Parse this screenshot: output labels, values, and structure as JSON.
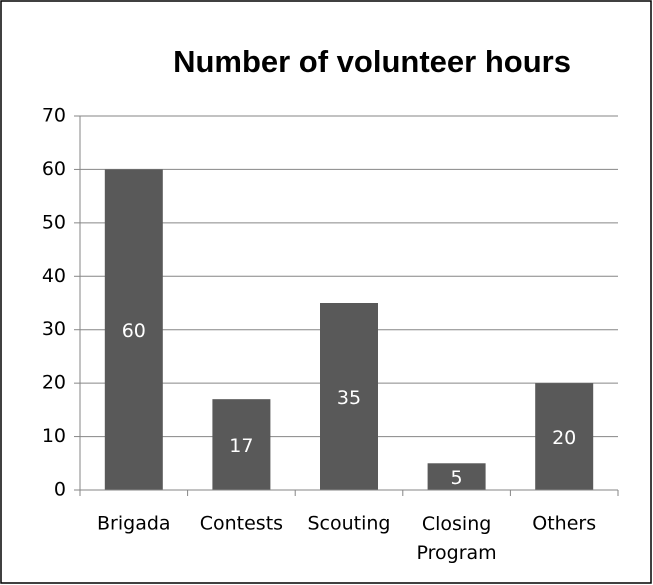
{
  "chart_data": {
    "type": "bar",
    "title": "Number of volunteer hours",
    "categories": [
      "Brigada",
      "Contests",
      "Scouting",
      "Closing Program",
      "Others"
    ],
    "values": [
      60,
      17,
      35,
      5,
      20
    ],
    "color": "#595959",
    "ylim": [
      0,
      70
    ],
    "yticks": [
      0,
      10,
      20,
      30,
      40,
      50,
      60,
      70
    ],
    "grid": true
  }
}
